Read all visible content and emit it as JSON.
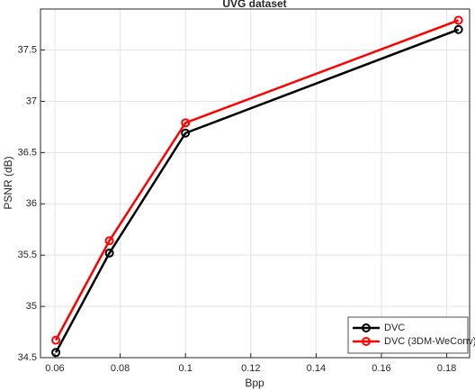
{
  "chart_data": {
    "type": "line",
    "title": "UVG dataset",
    "xlabel": "Bpp",
    "ylabel": "PSNR (dB)",
    "xlim": [
      0.0556,
      0.187
    ],
    "ylim": [
      34.5,
      37.9
    ],
    "xticks": [
      0.06,
      0.08,
      0.1,
      0.12,
      0.14,
      0.16,
      0.18
    ],
    "yticks": [
      34.5,
      35,
      35.5,
      36,
      36.5,
      37,
      37.5
    ],
    "grid": true,
    "legend": "southeast",
    "series": [
      {
        "name": "DVC",
        "color": "#000000",
        "x": [
          0.0603,
          0.0767,
          0.1,
          0.1836
        ],
        "values": [
          34.55,
          35.52,
          36.69,
          37.7
        ]
      },
      {
        "name": "DVC (3DM-WeConv)",
        "color": "#ff0000",
        "x": [
          0.0603,
          0.0767,
          0.1,
          0.1836
        ],
        "values": [
          34.67,
          35.64,
          36.79,
          37.79
        ]
      }
    ]
  }
}
